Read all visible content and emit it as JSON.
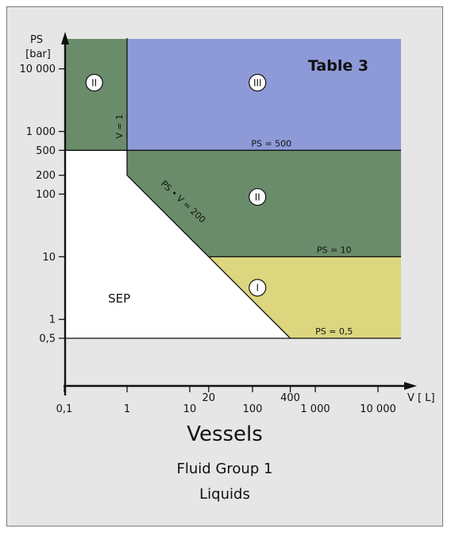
{
  "chart_data": {
    "type": "area",
    "title": "Table 3",
    "xlabel": "V [ L]",
    "ylabel": [
      "PS",
      "[bar]"
    ],
    "xscale": "log",
    "yscale": "log",
    "x_ticks": [
      {
        "value": 0.1,
        "label": "0,1"
      },
      {
        "value": 1,
        "label": "1"
      },
      {
        "value": 10,
        "label": "10"
      },
      {
        "value": 20,
        "label": "20"
      },
      {
        "value": 100,
        "label": "100"
      },
      {
        "value": 400,
        "label": "400"
      },
      {
        "value": 1000,
        "label": "1 000"
      },
      {
        "value": 10000,
        "label": "10 000"
      }
    ],
    "y_ticks": [
      {
        "value": 0.5,
        "label": "0,5"
      },
      {
        "value": 1,
        "label": "1"
      },
      {
        "value": 10,
        "label": "10"
      },
      {
        "value": 100,
        "label": "100"
      },
      {
        "value": 200,
        "label": "200"
      },
      {
        "value": 500,
        "label": "500"
      },
      {
        "value": 1000,
        "label": "1 000"
      },
      {
        "value": 10000,
        "label": "10 000"
      }
    ],
    "regions": [
      {
        "name": "SEP",
        "label": "SEP",
        "style": "plain",
        "color": "#ffffff",
        "polygon": [
          [
            0.1,
            0.5
          ],
          [
            0.1,
            500
          ],
          [
            1,
            500
          ],
          [
            1,
            200
          ],
          [
            20,
            10
          ],
          [
            400,
            0.5
          ]
        ]
      },
      {
        "name": "II-left",
        "label": "II",
        "style": "circled",
        "color": "#6a8c6a",
        "polygon": [
          [
            0.1,
            500
          ],
          [
            0.1,
            30000
          ],
          [
            1,
            30000
          ],
          [
            1,
            500
          ]
        ]
      },
      {
        "name": "III",
        "label": "III",
        "style": "circled",
        "color": "#8e9ad8",
        "polygon": [
          [
            1,
            500
          ],
          [
            1,
            30000
          ],
          [
            25000,
            30000
          ],
          [
            25000,
            500
          ]
        ]
      },
      {
        "name": "II-right",
        "label": "II",
        "style": "circled",
        "color": "#6a8c6a",
        "polygon": [
          [
            1,
            200
          ],
          [
            1,
            500
          ],
          [
            25000,
            500
          ],
          [
            25000,
            10
          ],
          [
            20,
            10
          ]
        ]
      },
      {
        "name": "I",
        "label": "I",
        "style": "circled",
        "color": "#dcd67e",
        "polygon": [
          [
            20,
            10
          ],
          [
            25000,
            10
          ],
          [
            25000,
            0.5
          ],
          [
            400,
            0.5
          ]
        ]
      }
    ],
    "region_label_positions": [
      {
        "label": "II",
        "x": 0.3,
        "y": 6000
      },
      {
        "label": "III",
        "x": 120,
        "y": 6000
      },
      {
        "label": "II",
        "x": 120,
        "y": 90
      },
      {
        "label": "I",
        "x": 120,
        "y": 3.2
      },
      {
        "label": "SEP",
        "x": 0.75,
        "y": 2.2
      }
    ],
    "boundaries": [
      {
        "label": "PS = 500",
        "x": 200,
        "y": 500
      },
      {
        "label": "PS = 10",
        "x": 2000,
        "y": 10
      },
      {
        "label": "PS = 0,5",
        "x": 2000,
        "y": 0.5
      },
      {
        "label": "V = 1",
        "x": 1,
        "y": 1200
      },
      {
        "label": "PS • V = 200",
        "x": 5,
        "y": 70
      }
    ]
  },
  "heading": "Vessels",
  "subtitle_1": "Fluid Group 1",
  "subtitle_2": "Liquids"
}
